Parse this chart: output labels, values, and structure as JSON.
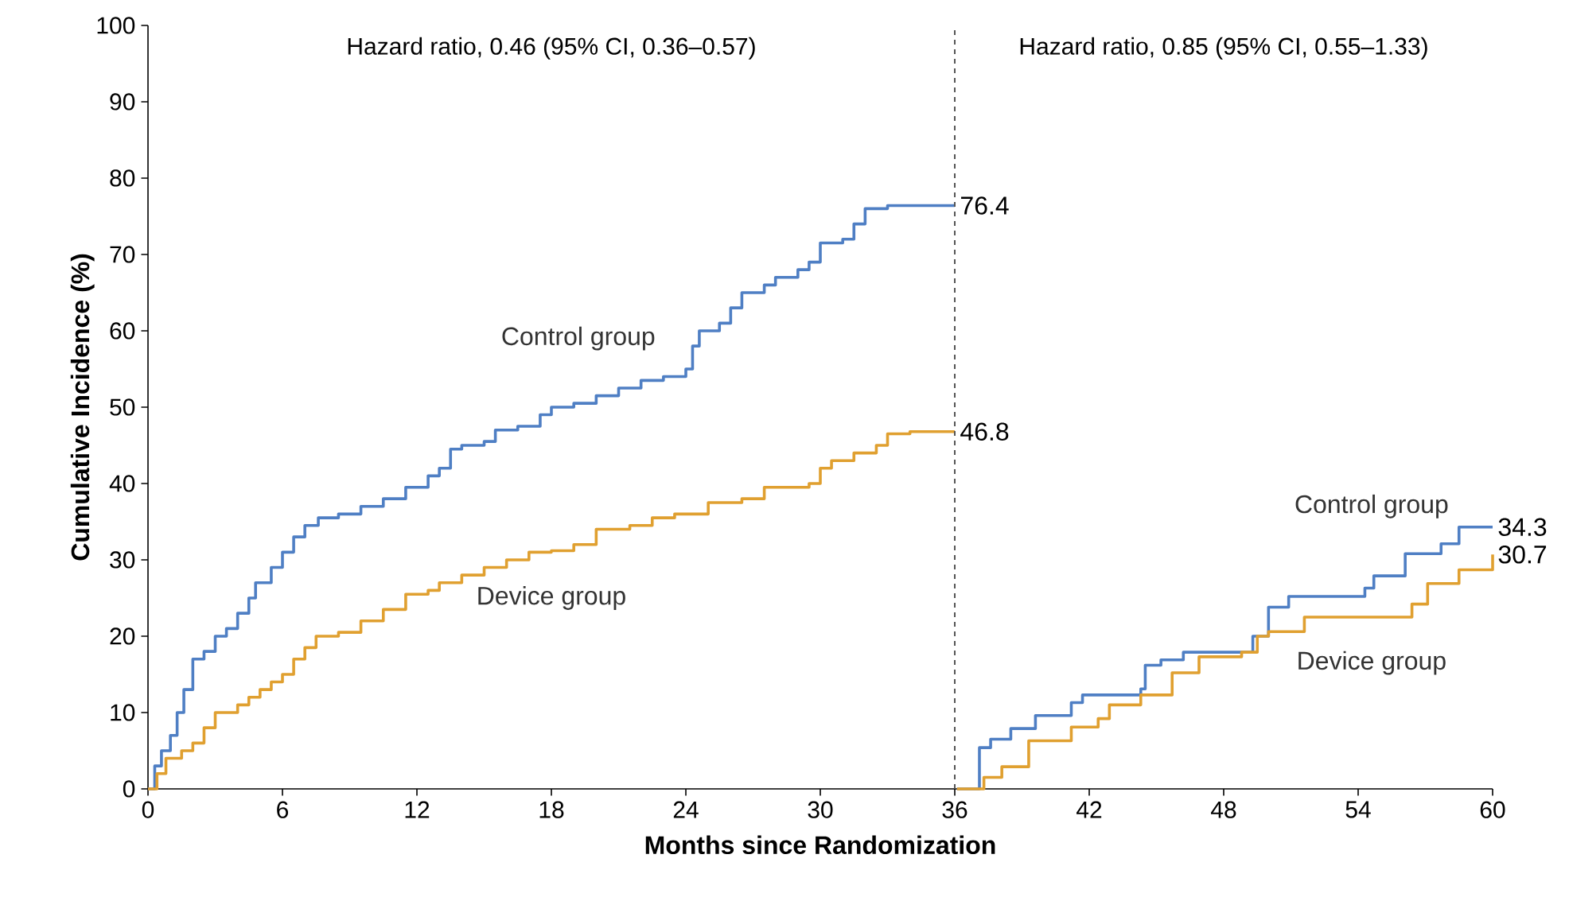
{
  "chart_data": {
    "type": "step",
    "xlabel": "Months since Randomization",
    "ylabel": "Cumulative Incidence (%)",
    "xlim": [
      0,
      60
    ],
    "ylim": [
      0,
      100
    ],
    "xticks": [
      0,
      6,
      12,
      18,
      24,
      30,
      36,
      42,
      48,
      54,
      60
    ],
    "yticks": [
      0,
      10,
      20,
      30,
      40,
      50,
      60,
      70,
      80,
      90,
      100
    ],
    "grid": false,
    "legend": false,
    "marker": "none",
    "line_style": "solid",
    "series": [
      {
        "name": "Control group",
        "color": "#4f7fc4",
        "x": [
          0,
          0.3,
          0.6,
          1,
          1.3,
          1.6,
          2,
          2.5,
          3,
          3.5,
          4,
          4.5,
          4.8,
          5.5,
          6,
          6.5,
          7,
          7.6,
          8.5,
          9.5,
          10.5,
          11.5,
          12.5,
          13,
          13.5,
          14,
          15,
          15.5,
          16.5,
          17.5,
          18,
          19,
          20,
          21,
          22,
          23,
          24,
          24.3,
          24.6,
          25.5,
          26,
          26.5,
          27.5,
          28,
          29,
          29.5,
          30,
          31,
          31.5,
          32,
          33,
          36
        ],
        "values": [
          0,
          3,
          5,
          7,
          10,
          13,
          17,
          18,
          20,
          21,
          23,
          25,
          27,
          29,
          31,
          33,
          34.5,
          35.5,
          36,
          37,
          38,
          39.5,
          41,
          42,
          44.5,
          45,
          45.5,
          47,
          47.5,
          49,
          50,
          50.5,
          51.5,
          52.5,
          53.5,
          54,
          55,
          58,
          60,
          61,
          63,
          65,
          66,
          67,
          68,
          69,
          71.5,
          72,
          74,
          76,
          76.4,
          76.4
        ],
        "value_labels": [
          null,
          null,
          null,
          null,
          null,
          null,
          null,
          null,
          null,
          null,
          null,
          null,
          null,
          null,
          null,
          null,
          null,
          null,
          null,
          null,
          null,
          null,
          null,
          null,
          null,
          null,
          null,
          null,
          null,
          null,
          null,
          null,
          null,
          null,
          null,
          null,
          null,
          null,
          null,
          null,
          null,
          null,
          null,
          null,
          null,
          null,
          null,
          null,
          null,
          null,
          null,
          "76.4"
        ]
      },
      {
        "name": "Device group",
        "color": "#e0a030",
        "x": [
          0,
          0.4,
          0.8,
          1.5,
          2,
          2.5,
          3,
          4,
          4.5,
          5,
          5.5,
          6,
          6.5,
          7,
          7.5,
          8.5,
          9.5,
          10.5,
          11.5,
          12.5,
          13,
          14,
          15,
          16,
          17,
          18,
          19,
          20,
          21.5,
          22.5,
          23.5,
          25,
          26.5,
          27.5,
          29.5,
          30,
          30.5,
          31.5,
          32.5,
          33,
          34,
          36
        ],
        "values": [
          0,
          2,
          4,
          5,
          6,
          8,
          10,
          11,
          12,
          13,
          14,
          15,
          17,
          18.5,
          20,
          20.5,
          22,
          23.5,
          25.5,
          26,
          27,
          28,
          29,
          30,
          31,
          31.2,
          32,
          34,
          34.5,
          35.5,
          36,
          37.5,
          38,
          39.5,
          40,
          42,
          43,
          44,
          45,
          46.5,
          46.8,
          46.8
        ],
        "value_labels": [
          null,
          null,
          null,
          null,
          null,
          null,
          null,
          null,
          null,
          null,
          null,
          null,
          null,
          null,
          null,
          null,
          null,
          null,
          null,
          null,
          null,
          null,
          null,
          null,
          null,
          null,
          null,
          null,
          null,
          null,
          null,
          null,
          null,
          null,
          null,
          null,
          null,
          null,
          null,
          null,
          null,
          "46.8"
        ]
      },
      {
        "name": "Control group",
        "color": "#4f7fc4",
        "x": [
          36.1,
          37.1,
          37.6,
          38.5,
          39.6,
          41.2,
          41.7,
          44.3,
          44.5,
          45.2,
          46.2,
          48.8,
          49.3,
          50,
          50.9,
          53.8,
          54.3,
          54.7,
          55.9,
          56.1,
          57.7,
          58.5,
          60
        ],
        "values": [
          0,
          5.4,
          6.5,
          7.9,
          9.6,
          11.3,
          12.3,
          13.1,
          16.2,
          16.9,
          17.9,
          17.9,
          20,
          23.8,
          25.2,
          25.2,
          26.3,
          27.9,
          27.9,
          30.8,
          32.1,
          34.3,
          34.3
        ],
        "value_labels": [
          null,
          null,
          null,
          null,
          null,
          null,
          null,
          null,
          null,
          null,
          null,
          null,
          null,
          null,
          null,
          null,
          null,
          null,
          null,
          null,
          null,
          null,
          "34.3"
        ]
      },
      {
        "name": "Device group",
        "color": "#e0a030",
        "x": [
          36.1,
          37.3,
          38.1,
          39.3,
          41.2,
          42.4,
          42.9,
          44.3,
          45.7,
          46.9,
          48.8,
          49.5,
          50,
          51.6,
          55,
          56.4,
          57.1,
          58.5,
          60
        ],
        "values": [
          0,
          1.5,
          2.9,
          6.3,
          8.1,
          9.2,
          11,
          12.3,
          15.2,
          17.3,
          17.9,
          20,
          20.6,
          22.5,
          22.5,
          24.2,
          26.9,
          28.7,
          30.7
        ],
        "value_labels": [
          null,
          null,
          null,
          null,
          null,
          null,
          null,
          null,
          null,
          null,
          null,
          null,
          null,
          null,
          null,
          null,
          null,
          null,
          "30.7"
        ]
      }
    ],
    "ref_lines": [
      {
        "axis": "x",
        "value": 36,
        "color": "#555555",
        "line_style": "dashed"
      }
    ],
    "annotations": [
      "Hazard ratio, 0.46 (95% CI, 0.36–0.57)",
      "Hazard ratio, 0.85 (95% CI, 0.55–1.33)"
    ]
  }
}
